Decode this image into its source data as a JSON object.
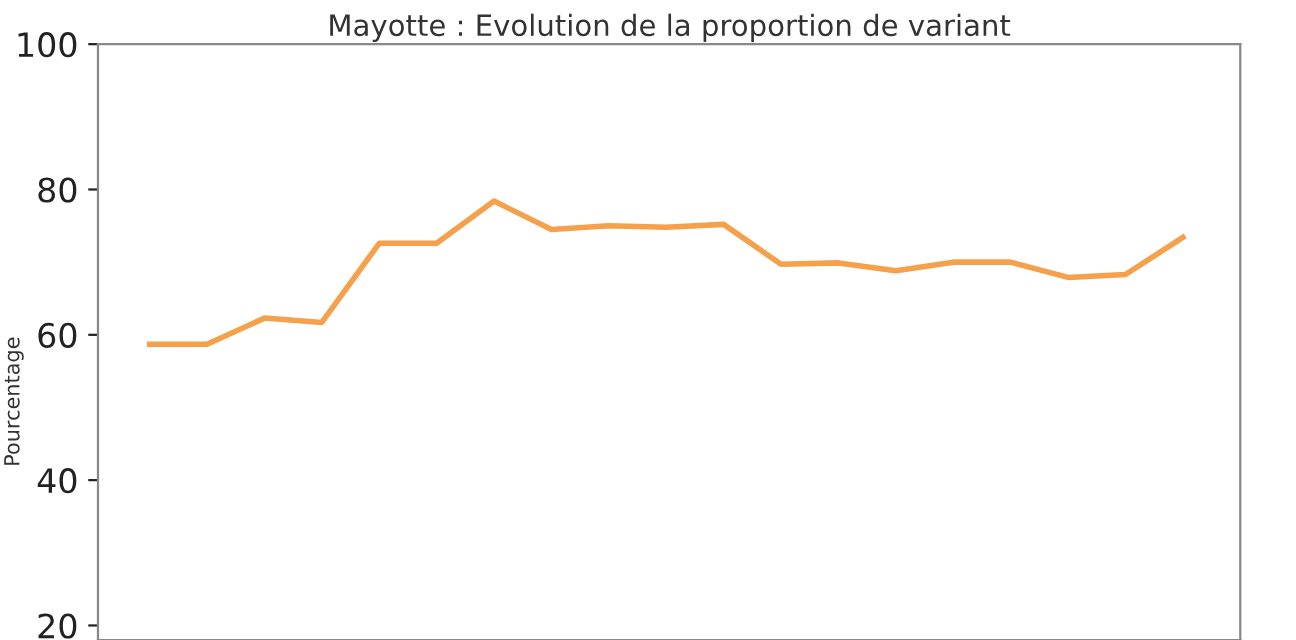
{
  "chart_data": {
    "type": "line",
    "title": "Mayotte : Evolution de la proportion de variant",
    "ylabel": "Pourcentage",
    "categories": [
      null,
      null,
      null,
      null,
      null,
      null,
      null,
      null,
      null,
      null,
      null,
      null,
      null,
      null,
      null,
      null,
      null,
      null,
      null
    ],
    "series": [
      {
        "color": "#f5a04a",
        "values": [
          58.7,
          58.7,
          62.3,
          61.7,
          72.6,
          72.6,
          78.4,
          74.5,
          75.0,
          74.8,
          75.2,
          69.7,
          69.9,
          68.8,
          70.0,
          70.0,
          67.9,
          68.3,
          73.4
        ]
      }
    ],
    "ylim": [
      18,
      100
    ],
    "yticks": [
      20,
      40,
      60,
      80,
      100
    ],
    "grid": false,
    "legend": false,
    "tick_labels": "y",
    "line_style": "solid",
    "marker": "none"
  }
}
